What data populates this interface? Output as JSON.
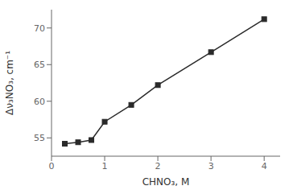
{
  "chart_data": {
    "type": "line",
    "x": [
      0.25,
      0.5,
      0.75,
      1.0,
      1.5,
      2.0,
      3.0,
      4.0
    ],
    "values": [
      54.2,
      54.4,
      54.7,
      57.2,
      59.5,
      62.2,
      66.7,
      71.2
    ],
    "xlim": [
      0,
      4.3
    ],
    "ylim": [
      52.5,
      72.5
    ],
    "xticks": [
      0,
      1,
      2,
      3,
      4
    ],
    "yticks": [
      55,
      60,
      65,
      70
    ],
    "xlabel": "CHNO₃, M",
    "ylabel": "Δν₃NO₃, cm⁻¹",
    "color": "#2a2a2a",
    "marker": "square",
    "grid": false
  }
}
